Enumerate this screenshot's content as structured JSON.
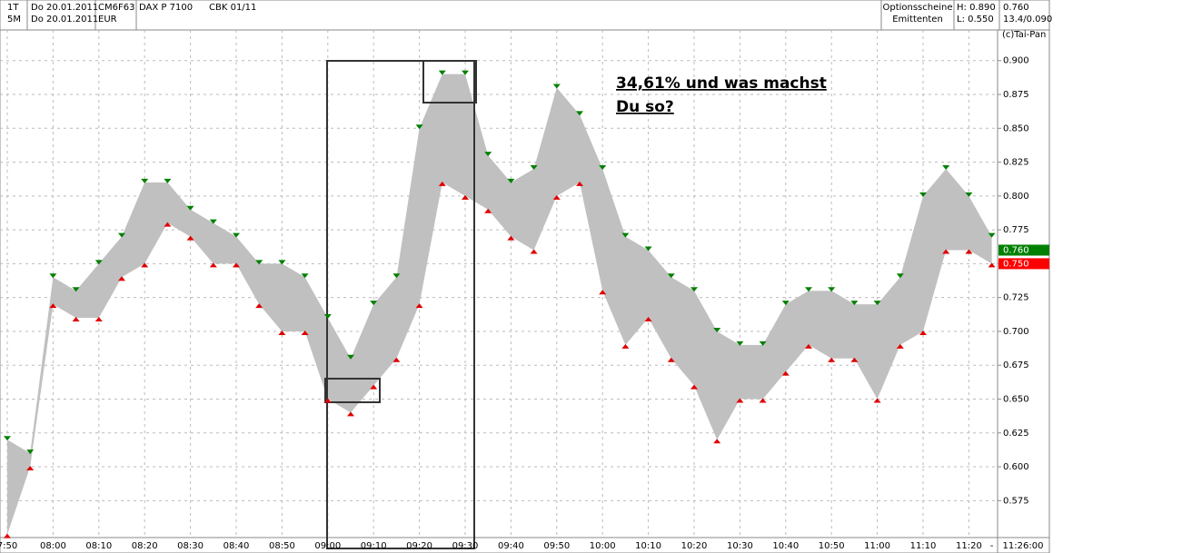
{
  "header": {
    "rows": [
      [
        "1T",
        "Do 20.01.2011",
        "CM6F63",
        "DAX P 7100",
        "CBK 01/11",
        "Optionsscheine",
        "H: 0.890",
        "0.760"
      ],
      [
        "5M",
        "Do 20.01.2011",
        "EUR",
        "",
        "",
        "Emittenten",
        "L: 0.550",
        "13.4/0.090"
      ]
    ],
    "brand": "(c)Tai-Pan"
  },
  "chart_data": {
    "type": "range-area",
    "categories": [
      "7:50",
      null,
      "08:00",
      null,
      "08:10",
      null,
      "08:20",
      null,
      "08:30",
      null,
      "08:40",
      null,
      "08:50",
      null,
      "09:00",
      null,
      "09:10",
      null,
      "09:20",
      null,
      "09:30",
      null,
      "09:40",
      null,
      "09:50",
      null,
      "10:00",
      null,
      "10:10",
      null,
      "10:20",
      null,
      "10:30",
      null,
      "10:40",
      null,
      "10:50",
      null,
      "11:00",
      null,
      "11:10",
      null,
      "11:20",
      "-"
    ],
    "series": [
      {
        "color": "#008000",
        "values": [
          0.62,
          0.61,
          0.74,
          0.73,
          0.75,
          0.77,
          0.81,
          0.81,
          0.79,
          0.78,
          0.77,
          0.75,
          0.75,
          0.74,
          0.71,
          0.68,
          0.72,
          0.74,
          0.85,
          0.89,
          0.89,
          0.83,
          0.81,
          0.82,
          0.88,
          0.86,
          0.82,
          0.77,
          0.76,
          0.74,
          0.73,
          0.7,
          0.69,
          0.69,
          0.72,
          0.73,
          0.73,
          0.72,
          0.72,
          0.74,
          0.8,
          0.82,
          0.8,
          0.77
        ]
      },
      {
        "color": "#e00000",
        "values": [
          0.55,
          0.6,
          0.72,
          0.71,
          0.71,
          0.74,
          0.75,
          0.78,
          0.77,
          0.75,
          0.75,
          0.72,
          0.7,
          0.7,
          0.65,
          0.64,
          0.66,
          0.68,
          0.72,
          0.81,
          0.8,
          0.79,
          0.77,
          0.76,
          0.8,
          0.81,
          0.73,
          0.69,
          0.71,
          0.68,
          0.66,
          0.62,
          0.65,
          0.65,
          0.67,
          0.69,
          0.68,
          0.68,
          0.65,
          0.69,
          0.7,
          0.76,
          0.76,
          0.75
        ]
      }
    ],
    "fill": "#c0c0c0",
    "ylim": [
      0.537,
      0.93
    ],
    "yticks": [
      {
        "value": 0.575,
        "label": "0.575"
      },
      {
        "value": 0.6,
        "label": "0.600"
      },
      {
        "value": 0.625,
        "label": "0.625"
      },
      {
        "value": 0.65,
        "label": "0.650"
      },
      {
        "value": 0.675,
        "label": "0.675"
      },
      {
        "value": 0.7,
        "label": "0.700"
      },
      {
        "value": 0.725,
        "label": "0.725"
      },
      {
        "value": 0.75,
        "label": "0.750"
      },
      {
        "value": 0.775,
        "label": "0.775"
      },
      {
        "value": 0.8,
        "label": "0.800"
      },
      {
        "value": 0.825,
        "label": "0.825"
      },
      {
        "value": 0.85,
        "label": "0.850"
      },
      {
        "value": 0.875,
        "label": "0.875"
      },
      {
        "value": 0.9,
        "label": "0.900"
      }
    ],
    "grid": true,
    "price_tags": [
      {
        "value": 0.76,
        "label": "0.760",
        "color": "#008000"
      },
      {
        "value": 0.75,
        "label": "0.750",
        "color": "#ff0000"
      }
    ],
    "x_end_label": "11:26:00",
    "annotation": [
      "34,61% und was machst ",
      "Du so?"
    ]
  }
}
